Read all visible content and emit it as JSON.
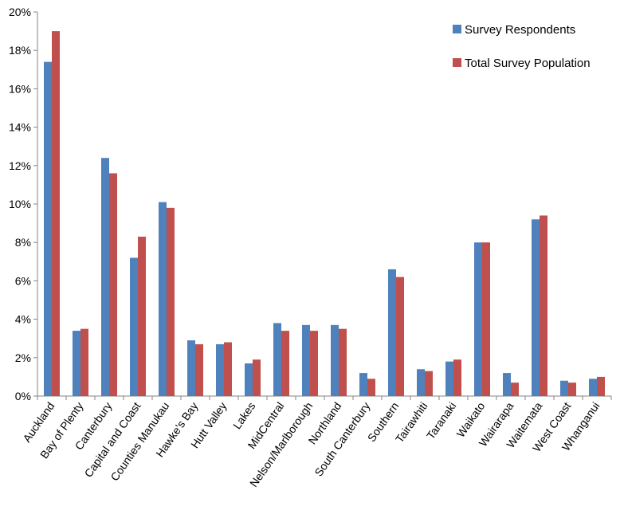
{
  "chart_data": {
    "type": "bar",
    "title": "",
    "xlabel": "",
    "ylabel": "",
    "ylim": [
      0,
      20
    ],
    "yticks": [
      0,
      2,
      4,
      6,
      8,
      10,
      12,
      14,
      16,
      18,
      20
    ],
    "ytick_labels": [
      "0%",
      "2%",
      "4%",
      "6%",
      "8%",
      "10%",
      "12%",
      "14%",
      "16%",
      "18%",
      "20%"
    ],
    "grid": false,
    "legend_position": "top-right",
    "categories": [
      "Auckland",
      "Bay of Plenty",
      "Canterbury",
      "Capital and Coast",
      "Counties Manukau",
      "Hawke's Bay",
      "Hutt Valley",
      "Lakes",
      "MidCentral",
      "Nelson/Marlborough",
      "Northland",
      "South Canterbury",
      "Southern",
      "Tairawhiti",
      "Taranaki",
      "Waikato",
      "Wairarapa",
      "Waitemata",
      "West Coast",
      "Whanganui"
    ],
    "series": [
      {
        "name": "Survey Respondents",
        "color": "#4F81BD",
        "values": [
          17.4,
          3.4,
          12.4,
          7.2,
          10.1,
          2.9,
          2.7,
          1.7,
          3.8,
          3.7,
          3.7,
          1.2,
          6.6,
          1.4,
          1.8,
          8.0,
          1.2,
          9.2,
          0.8,
          0.9
        ]
      },
      {
        "name": "Total Survey Population",
        "color": "#C0504D",
        "values": [
          19.0,
          3.5,
          11.6,
          8.3,
          9.8,
          2.7,
          2.8,
          1.9,
          3.4,
          3.4,
          3.5,
          0.9,
          6.2,
          1.3,
          1.9,
          8.0,
          0.7,
          9.4,
          0.7,
          1.0
        ]
      }
    ]
  }
}
